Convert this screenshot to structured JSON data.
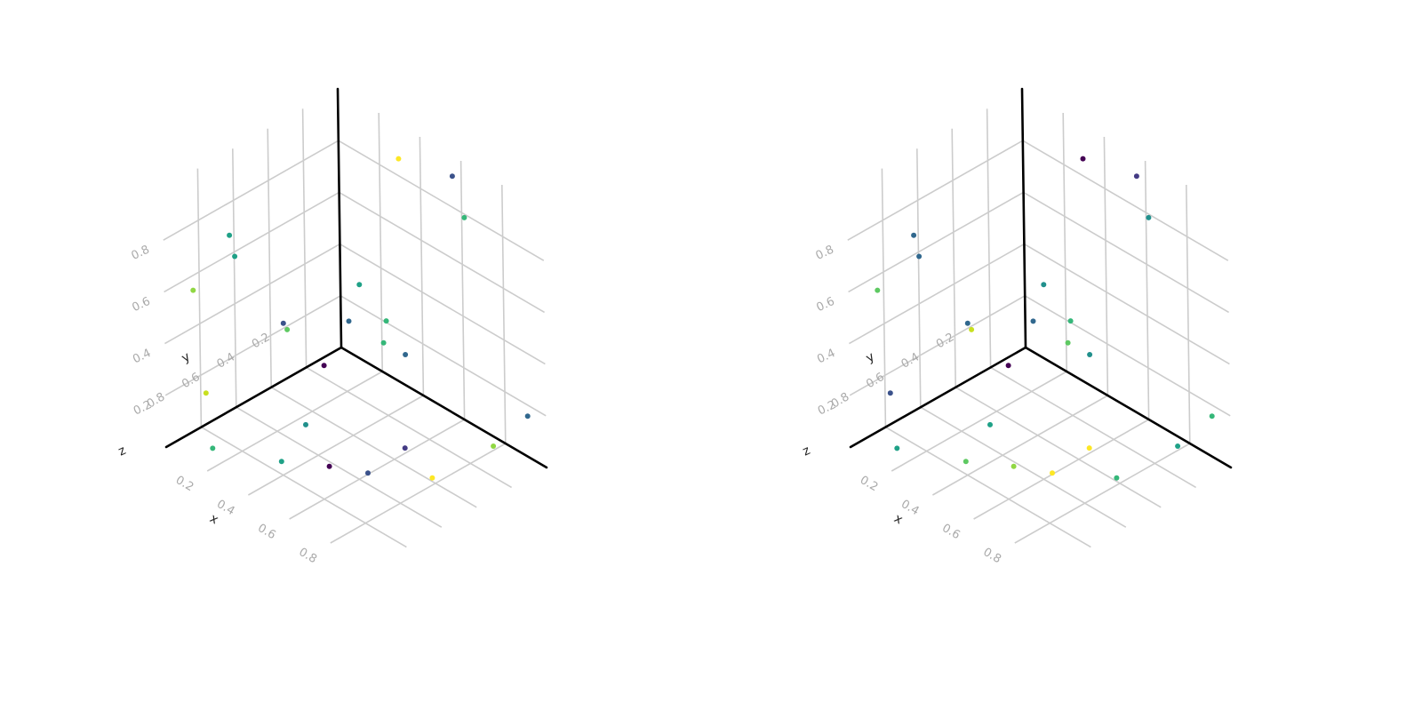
{
  "chart_data": [
    {
      "type": "scatter",
      "projection": "3d",
      "title": "",
      "xlabel": "x",
      "ylabel": "y",
      "zlabel": "z",
      "xlim": [
        0,
        1
      ],
      "ylim": [
        0,
        1
      ],
      "zlim": [
        0,
        1
      ],
      "x_ticks": [
        "0.2",
        "0.4",
        "0.6",
        "0.8"
      ],
      "y_ticks": [
        "0.2",
        "0.4",
        "0.6",
        "0.8"
      ],
      "z_ticks": [
        "0.2",
        "0.4",
        "0.6",
        "0.8"
      ],
      "grid": true,
      "colormap": "viridis",
      "colors": [
        "#440154",
        "#443b84",
        "#3b528b",
        "#31688e",
        "#21908c",
        "#1fa187",
        "#35b779",
        "#5ec962",
        "#90d743",
        "#c8e020",
        "#fde725"
      ],
      "points": [
        {
          "x": 0.6,
          "y": 0.05,
          "z": 0.96,
          "c": 0.2
        },
        {
          "x": 0.02,
          "y": 0.62,
          "z": 0.6,
          "c": 0.5
        },
        {
          "x": 0.32,
          "y": 0.03,
          "z": 0.89,
          "c": 1.0
        },
        {
          "x": 0.93,
          "y": 0.72,
          "z": 0.32,
          "c": 0.1
        },
        {
          "x": 0.98,
          "y": 0.08,
          "z": 0.22,
          "c": 0.3
        },
        {
          "x": 0.54,
          "y": 0.95,
          "z": 0.71,
          "c": 0.15
        },
        {
          "x": 0.76,
          "y": 0.17,
          "z": 0.92,
          "c": 0.55
        },
        {
          "x": 0.24,
          "y": 0.17,
          "z": 0.42,
          "c": 0.45
        },
        {
          "x": 0.16,
          "y": 0.81,
          "z": 0.82,
          "c": 0.45
        },
        {
          "x": 0.87,
          "y": 0.15,
          "z": 0.08,
          "c": 0.75
        },
        {
          "x": 0.39,
          "y": 0.21,
          "z": 0.28,
          "c": 0.55
        },
        {
          "x": 0.88,
          "y": 0.51,
          "z": 0.1,
          "c": 1.0
        },
        {
          "x": 0.47,
          "y": 0.18,
          "z": 0.26,
          "c": 0.25
        },
        {
          "x": 0.37,
          "y": 0.17,
          "z": 0.34,
          "c": 0.6
        },
        {
          "x": 0.54,
          "y": 0.7,
          "z": 0.06,
          "c": 0.0
        },
        {
          "x": 0.34,
          "y": 0.6,
          "z": 0.09,
          "c": 0.35
        },
        {
          "x": 0.98,
          "y": 0.99,
          "z": 0.35,
          "c": 0.2
        },
        {
          "x": 0.2,
          "y": 0.33,
          "z": 0.15,
          "c": 0.0
        },
        {
          "x": 0.47,
          "y": 0.89,
          "z": 0.12,
          "c": 0.5
        },
        {
          "x": 0.0,
          "y": 0.77,
          "z": 0.12,
          "c": 0.9
        },
        {
          "x": 0.16,
          "y": 0.14,
          "z": 0.23,
          "c": 0.3
        },
        {
          "x": 0.15,
          "y": 0.91,
          "z": 0.03,
          "c": 0.55
        },
        {
          "x": 0.29,
          "y": 0.64,
          "z": 0.45,
          "c": 0.65
        },
        {
          "x": 0.03,
          "y": 0.87,
          "z": 0.57,
          "c": 0.75
        }
      ]
    },
    {
      "type": "scatter",
      "projection": "3d",
      "title": "",
      "xlabel": "x",
      "ylabel": "y",
      "zlabel": "z",
      "xlim": [
        0,
        1
      ],
      "ylim": [
        0,
        1
      ],
      "zlim": [
        0,
        1
      ],
      "x_ticks": [
        "0.2",
        "0.4",
        "0.6",
        "0.8"
      ],
      "y_ticks": [
        "0.2",
        "0.4",
        "0.6",
        "0.8"
      ],
      "z_ticks": [
        "0.2",
        "0.4",
        "0.6",
        "0.8"
      ],
      "grid": true,
      "colormap": "viridis",
      "colors": [
        "#440154",
        "#443b84",
        "#3b528b",
        "#31688e",
        "#21908c",
        "#1fa187",
        "#35b779",
        "#5ec962",
        "#90d743",
        "#c8e020",
        "#fde725"
      ],
      "points": [
        {
          "x": 0.6,
          "y": 0.05,
          "z": 0.96,
          "c": 0.1
        },
        {
          "x": 0.02,
          "y": 0.62,
          "z": 0.6,
          "c": 0.3
        },
        {
          "x": 0.32,
          "y": 0.03,
          "z": 0.89,
          "c": 0.0
        },
        {
          "x": 0.93,
          "y": 0.72,
          "z": 0.32,
          "c": 1.0
        },
        {
          "x": 0.98,
          "y": 0.08,
          "z": 0.22,
          "c": 0.6
        },
        {
          "x": 0.54,
          "y": 0.95,
          "z": 0.71,
          "c": 0.25
        },
        {
          "x": 0.76,
          "y": 0.17,
          "z": 0.92,
          "c": 0.4
        },
        {
          "x": 0.24,
          "y": 0.17,
          "z": 0.42,
          "c": 0.35
        },
        {
          "x": 0.16,
          "y": 0.81,
          "z": 0.82,
          "c": 0.25
        },
        {
          "x": 0.87,
          "y": 0.15,
          "z": 0.08,
          "c": 0.45
        },
        {
          "x": 0.39,
          "y": 0.21,
          "z": 0.28,
          "c": 0.65
        },
        {
          "x": 0.88,
          "y": 0.51,
          "z": 0.1,
          "c": 0.55
        },
        {
          "x": 0.47,
          "y": 0.18,
          "z": 0.26,
          "c": 0.35
        },
        {
          "x": 0.37,
          "y": 0.17,
          "z": 0.34,
          "c": 0.55
        },
        {
          "x": 0.54,
          "y": 0.7,
          "z": 0.06,
          "c": 0.8
        },
        {
          "x": 0.34,
          "y": 0.6,
          "z": 0.09,
          "c": 0.5
        },
        {
          "x": 0.98,
          "y": 0.99,
          "z": 0.35,
          "c": 0.95
        },
        {
          "x": 0.2,
          "y": 0.33,
          "z": 0.15,
          "c": 0.0
        },
        {
          "x": 0.47,
          "y": 0.89,
          "z": 0.12,
          "c": 0.7
        },
        {
          "x": 0.0,
          "y": 0.77,
          "z": 0.12,
          "c": 0.2
        },
        {
          "x": 0.16,
          "y": 0.14,
          "z": 0.23,
          "c": 0.25
        },
        {
          "x": 0.15,
          "y": 0.91,
          "z": 0.03,
          "c": 0.45
        },
        {
          "x": 0.29,
          "y": 0.64,
          "z": 0.45,
          "c": 0.85
        },
        {
          "x": 0.03,
          "y": 0.87,
          "z": 0.57,
          "c": 0.65
        }
      ]
    }
  ]
}
